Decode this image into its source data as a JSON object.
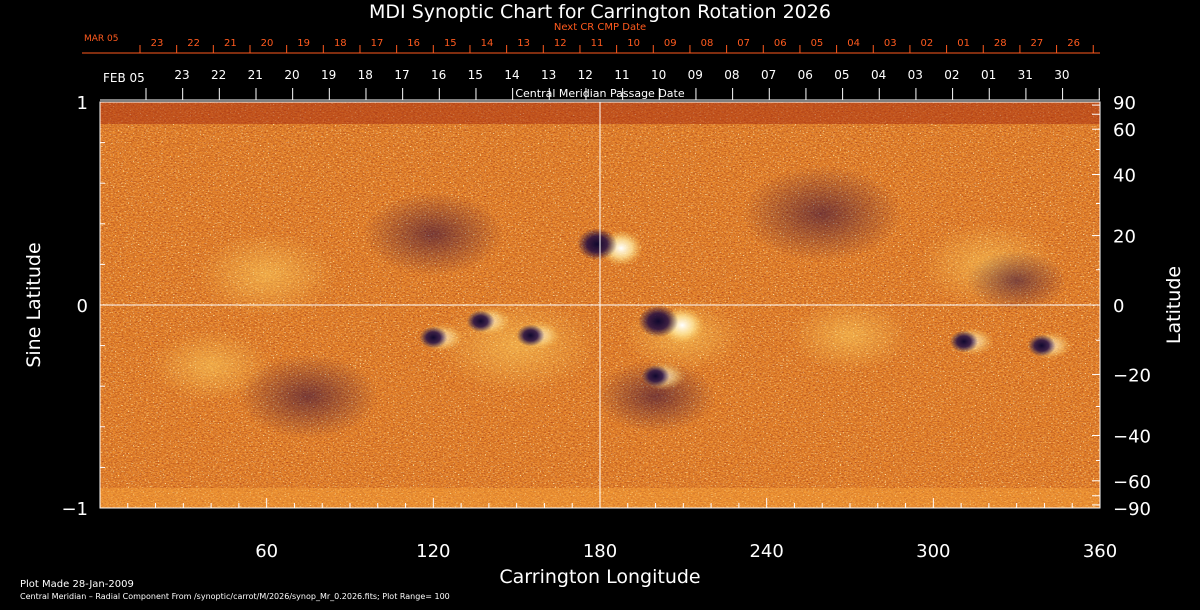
{
  "chart_data": {
    "type": "heatmap",
    "title": "MDI Synoptic Chart for Carrington Rotation 2026",
    "xlabel": "Carrington Longitude",
    "ylabel_left": "Sine Latitude",
    "ylabel_right": "Latitude",
    "xlim": [
      0,
      360
    ],
    "ylim_sine": [
      -1,
      1
    ],
    "x_ticks": [
      "60",
      "120",
      "180",
      "240",
      "300",
      "360"
    ],
    "y_ticks_left": [
      "1",
      "0",
      "−1"
    ],
    "y_ticks_right": [
      "90",
      "60",
      "40",
      "20",
      "0",
      "−20",
      "−40",
      "−60",
      "−90"
    ],
    "cmp_axis_label": "Central Meridian Passage Date",
    "cmp_start_label": "FEB 05",
    "cmp_dates": [
      "23",
      "22",
      "21",
      "20",
      "19",
      "18",
      "17",
      "16",
      "15",
      "14",
      "13",
      "12",
      "11",
      "10",
      "09",
      "08",
      "07",
      "06",
      "05",
      "04",
      "03",
      "02",
      "01",
      "31",
      "30"
    ],
    "next_axis_label": "Next CR CMP Date",
    "next_start_label": "MAR 05",
    "next_dates": [
      "23",
      "22",
      "21",
      "20",
      "19",
      "18",
      "17",
      "16",
      "15",
      "14",
      "13",
      "12",
      "11",
      "10",
      "09",
      "08",
      "07",
      "06",
      "05",
      "04",
      "03",
      "02",
      "01",
      "28",
      "27",
      "26"
    ],
    "plot_range": 100,
    "regions": [
      {
        "lon": 120,
        "sinlat": -0.16,
        "polarity": "negative"
      },
      {
        "lon": 137,
        "sinlat": -0.08,
        "polarity": "negative"
      },
      {
        "lon": 155,
        "sinlat": -0.15,
        "polarity": "negative"
      },
      {
        "lon": 184,
        "sinlat": 0.28,
        "polarity": "mixed"
      },
      {
        "lon": 206,
        "sinlat": -0.1,
        "polarity": "mixed"
      },
      {
        "lon": 200,
        "sinlat": -0.35,
        "polarity": "negative"
      },
      {
        "lon": 311,
        "sinlat": -0.18,
        "polarity": "negative"
      },
      {
        "lon": 339,
        "sinlat": -0.2,
        "polarity": "negative"
      }
    ]
  },
  "footer": {
    "plot_made": "Plot Made 28-Jan-2009",
    "source": "Central Meridian – Radial Component From /synoptic/carrot/M/2026/synop_Mr_0.2026.fits; Plot Range=  100"
  }
}
